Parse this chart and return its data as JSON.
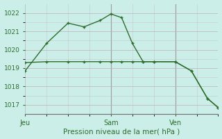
{
  "title": "Pression niveau de la mer( hPa )",
  "background_color": "#cceee8",
  "grid_color": "#c0b0b8",
  "line_color": "#2d6e2d",
  "ylim": [
    1016.5,
    1022.5
  ],
  "yticks": [
    1017,
    1018,
    1019,
    1020,
    1021,
    1022
  ],
  "xtick_positions": [
    0,
    8,
    14
  ],
  "xtick_labels": [
    "Jeu",
    "Sam",
    "Ven"
  ],
  "xlim": [
    0,
    18
  ],
  "line1_x": [
    0,
    2,
    4,
    5.5,
    7,
    8,
    9,
    10,
    11,
    12,
    14,
    15.5,
    17,
    18
  ],
  "line1_y": [
    1018.85,
    1020.35,
    1021.45,
    1021.25,
    1021.6,
    1021.95,
    1021.75,
    1020.35,
    1019.35,
    1019.35,
    1019.35,
    1018.85,
    1017.35,
    1016.85
  ],
  "line2_x": [
    0,
    2,
    4,
    5.5,
    7,
    8,
    9,
    10,
    11,
    12,
    14,
    15.5,
    17,
    18
  ],
  "line2_y": [
    1019.3,
    1019.35,
    1019.35,
    1019.35,
    1019.35,
    1019.35,
    1019.35,
    1019.35,
    1019.35,
    1019.35,
    1019.35,
    1018.85,
    1017.35,
    1016.85
  ],
  "vline_positions": [
    8,
    14
  ],
  "vline_color": "#707070",
  "ylabel_fontsize": 6.5,
  "xlabel_fontsize": 7.0,
  "title_fontsize": 7.5
}
